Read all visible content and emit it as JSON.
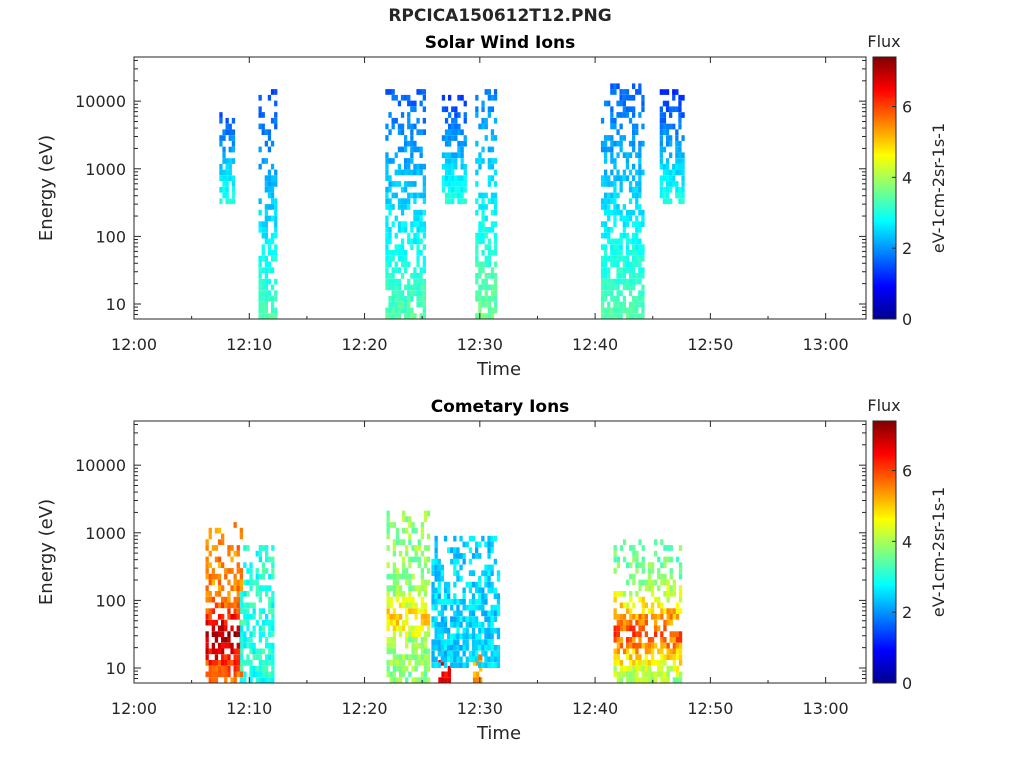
{
  "figure_title": "RPCICA150612T12.PNG",
  "colorbar": {
    "label": "Flux",
    "unit": "eV-1cm-2sr-1s-1",
    "min": 0,
    "max": 7.4,
    "ticks": [
      "0",
      "2",
      "4",
      "6"
    ],
    "colormap": "jet"
  },
  "chart_data": [
    {
      "type": "heatmap",
      "title": "Solar Wind Ions",
      "xlabel": "Time",
      "ylabel": "Energy (eV)",
      "x_ticks": [
        "12:00",
        "12:10",
        "12:20",
        "12:30",
        "12:40",
        "12:50",
        "13:00"
      ],
      "y_ticks": [
        "10",
        "100",
        "1000",
        "10000"
      ],
      "xlim_minutes": [
        0,
        63.5
      ],
      "ylim": [
        6,
        45000
      ],
      "y_scale": "log",
      "bursts": [
        {
          "t_start": 7.4,
          "t_end": 8.7,
          "e_min": 300,
          "e_max": 10000,
          "flux": 1.2
        },
        {
          "t_start": 10.8,
          "t_end": 12.2,
          "e_min": 6,
          "e_max": 13000,
          "flux": 1.5
        },
        {
          "t_start": 21.8,
          "t_end": 25.2,
          "e_min": 6,
          "e_max": 13000,
          "flux": 1.6
        },
        {
          "t_start": 26.7,
          "t_end": 28.6,
          "e_min": 300,
          "e_max": 14000,
          "flux": 1.2
        },
        {
          "t_start": 29.6,
          "t_end": 31.4,
          "e_min": 6,
          "e_max": 14000,
          "flux": 1.8
        },
        {
          "t_start": 40.5,
          "t_end": 44.2,
          "e_min": 6,
          "e_max": 18000,
          "flux": 1.6
        },
        {
          "t_start": 45.6,
          "t_end": 47.5,
          "e_min": 300,
          "e_max": 15000,
          "flux": 1.2
        }
      ]
    },
    {
      "type": "heatmap",
      "title": "Cometary Ions",
      "xlabel": "Time",
      "ylabel": "Energy (eV)",
      "x_ticks": [
        "12:00",
        "12:10",
        "12:20",
        "12:30",
        "12:40",
        "12:50",
        "13:00"
      ],
      "y_ticks": [
        "10",
        "100",
        "1000",
        "10000"
      ],
      "xlim_minutes": [
        0,
        63.5
      ],
      "ylim": [
        6,
        45000
      ],
      "y_scale": "log",
      "bursts": [
        {
          "t_start": 6.2,
          "t_end": 9.2,
          "e_min": 6,
          "e_max": 1200,
          "flux": 5.5,
          "peak": 7.2,
          "peak_e": 25
        },
        {
          "t_start": 9.2,
          "t_end": 12.0,
          "e_min": 6,
          "e_max": 600,
          "flux": 3.0
        },
        {
          "t_start": 21.9,
          "t_end": 25.5,
          "e_min": 6,
          "e_max": 2000,
          "flux": 3.8,
          "peak": 5.0,
          "peak_e": 50
        },
        {
          "t_start": 26.4,
          "t_end": 27.3,
          "e_min": 6,
          "e_max": 20,
          "flux": 6.5
        },
        {
          "t_start": 29.4,
          "t_end": 30.1,
          "e_min": 6,
          "e_max": 20,
          "flux": 5.3
        },
        {
          "t_start": 25.8,
          "t_end": 31.5,
          "e_min": 10,
          "e_max": 800,
          "flux": 2.5
        },
        {
          "t_start": 41.6,
          "t_end": 47.5,
          "e_min": 6,
          "e_max": 800,
          "flux": 3.6,
          "peak": 6.0,
          "peak_e": 30
        }
      ]
    }
  ]
}
